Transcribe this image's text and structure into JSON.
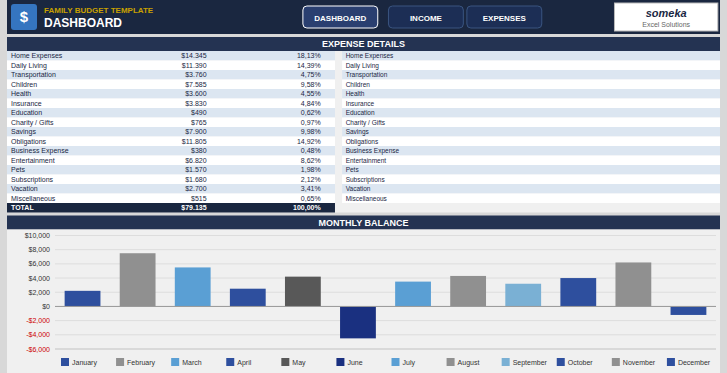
{
  "title": "FAMILY BUDGET TEMPLATE",
  "subtitle": "DASHBOARD",
  "annotations": [
    "$",
    "DASHBOARD",
    "INCOME",
    "EXPENSES",
    "someka",
    "Excel Solutions"
  ],
  "chart_data": [
    {
      "type": "bar",
      "orientation": "horizontal",
      "title": "EXPENSE DETAILS",
      "categories": [
        "Home Expenses",
        "Daily Living",
        "Transportation",
        "Children",
        "Health",
        "Insurance",
        "Education",
        "Charity / Gifts",
        "Savings",
        "Obligations",
        "Business Expense",
        "Entertainment",
        "Pets",
        "Subscriptions",
        "Vacation",
        "Miscellaneous"
      ],
      "values": [
        14345,
        11390,
        3760,
        7585,
        3600,
        3830,
        490,
        765,
        7900,
        11805,
        380,
        6820,
        1570,
        1680,
        2700,
        515
      ],
      "value_labels": [
        "$14.345",
        "$11.390",
        "$3.760",
        "$7.585",
        "$3.600",
        "$3.830",
        "$490",
        "$765",
        "$7.900",
        "$11.805",
        "$380",
        "$6.820",
        "$1.570",
        "$1.680",
        "$2.700",
        "$515"
      ],
      "shares": [
        18.13,
        14.39,
        4.75,
        9.58,
        4.55,
        4.84,
        0.62,
        0.97,
        9.98,
        14.92,
        0.48,
        8.62,
        1.98,
        2.12,
        3.41,
        0.65
      ],
      "share_labels": [
        "18,13%",
        "14,39%",
        "4,75%",
        "9,58%",
        "4,55%",
        "4,84%",
        "0,62%",
        "0,97%",
        "9,98%",
        "14,92%",
        "0,48%",
        "8,62%",
        "1,98%",
        "2,12%",
        "3,41%",
        "0,65%"
      ],
      "total_text": "TOTAL",
      "total": 79135,
      "total_label": "$79.135",
      "total_share": 100,
      "total_share_label": "100,00%",
      "color": "#4a7d9f",
      "xlim": [
        0,
        15000
      ],
      "tick_labels": false,
      "grid": false
    },
    {
      "type": "bar",
      "title": "MONTHLY BALANCE",
      "categories": [
        "January",
        "February",
        "March",
        "April",
        "May",
        "June",
        "July",
        "August",
        "September",
        "October",
        "November",
        "December"
      ],
      "values": [
        2200,
        7500,
        5500,
        2500,
        4200,
        -4500,
        3500,
        4300,
        3200,
        4000,
        6200,
        -1200
      ],
      "colors": [
        "#2e4f9e",
        "#909090",
        "#5a9fd4",
        "#2e4f9e",
        "#585858",
        "#1a3080",
        "#5a9fd4",
        "#909090",
        "#7ab0d4",
        "#2e4f9e",
        "#909090",
        "#2e4f9e"
      ],
      "ylim": [
        -6000,
        10000
      ],
      "yticks": [
        {
          "value": -6000,
          "label": "-$6,000"
        },
        {
          "value": -4000,
          "label": "-$4,000"
        },
        {
          "value": -2000,
          "label": "-$2,000"
        },
        {
          "value": 0,
          "label": "$0"
        },
        {
          "value": 2000,
          "label": "$2,000"
        },
        {
          "value": 4000,
          "label": "$4,000"
        },
        {
          "value": 6000,
          "label": "$6,000"
        },
        {
          "value": 8000,
          "label": "$8,000"
        },
        {
          "value": 10000,
          "label": "$10,000"
        }
      ],
      "grid": true,
      "legend": "bottom",
      "tick_labels": "y"
    }
  ]
}
